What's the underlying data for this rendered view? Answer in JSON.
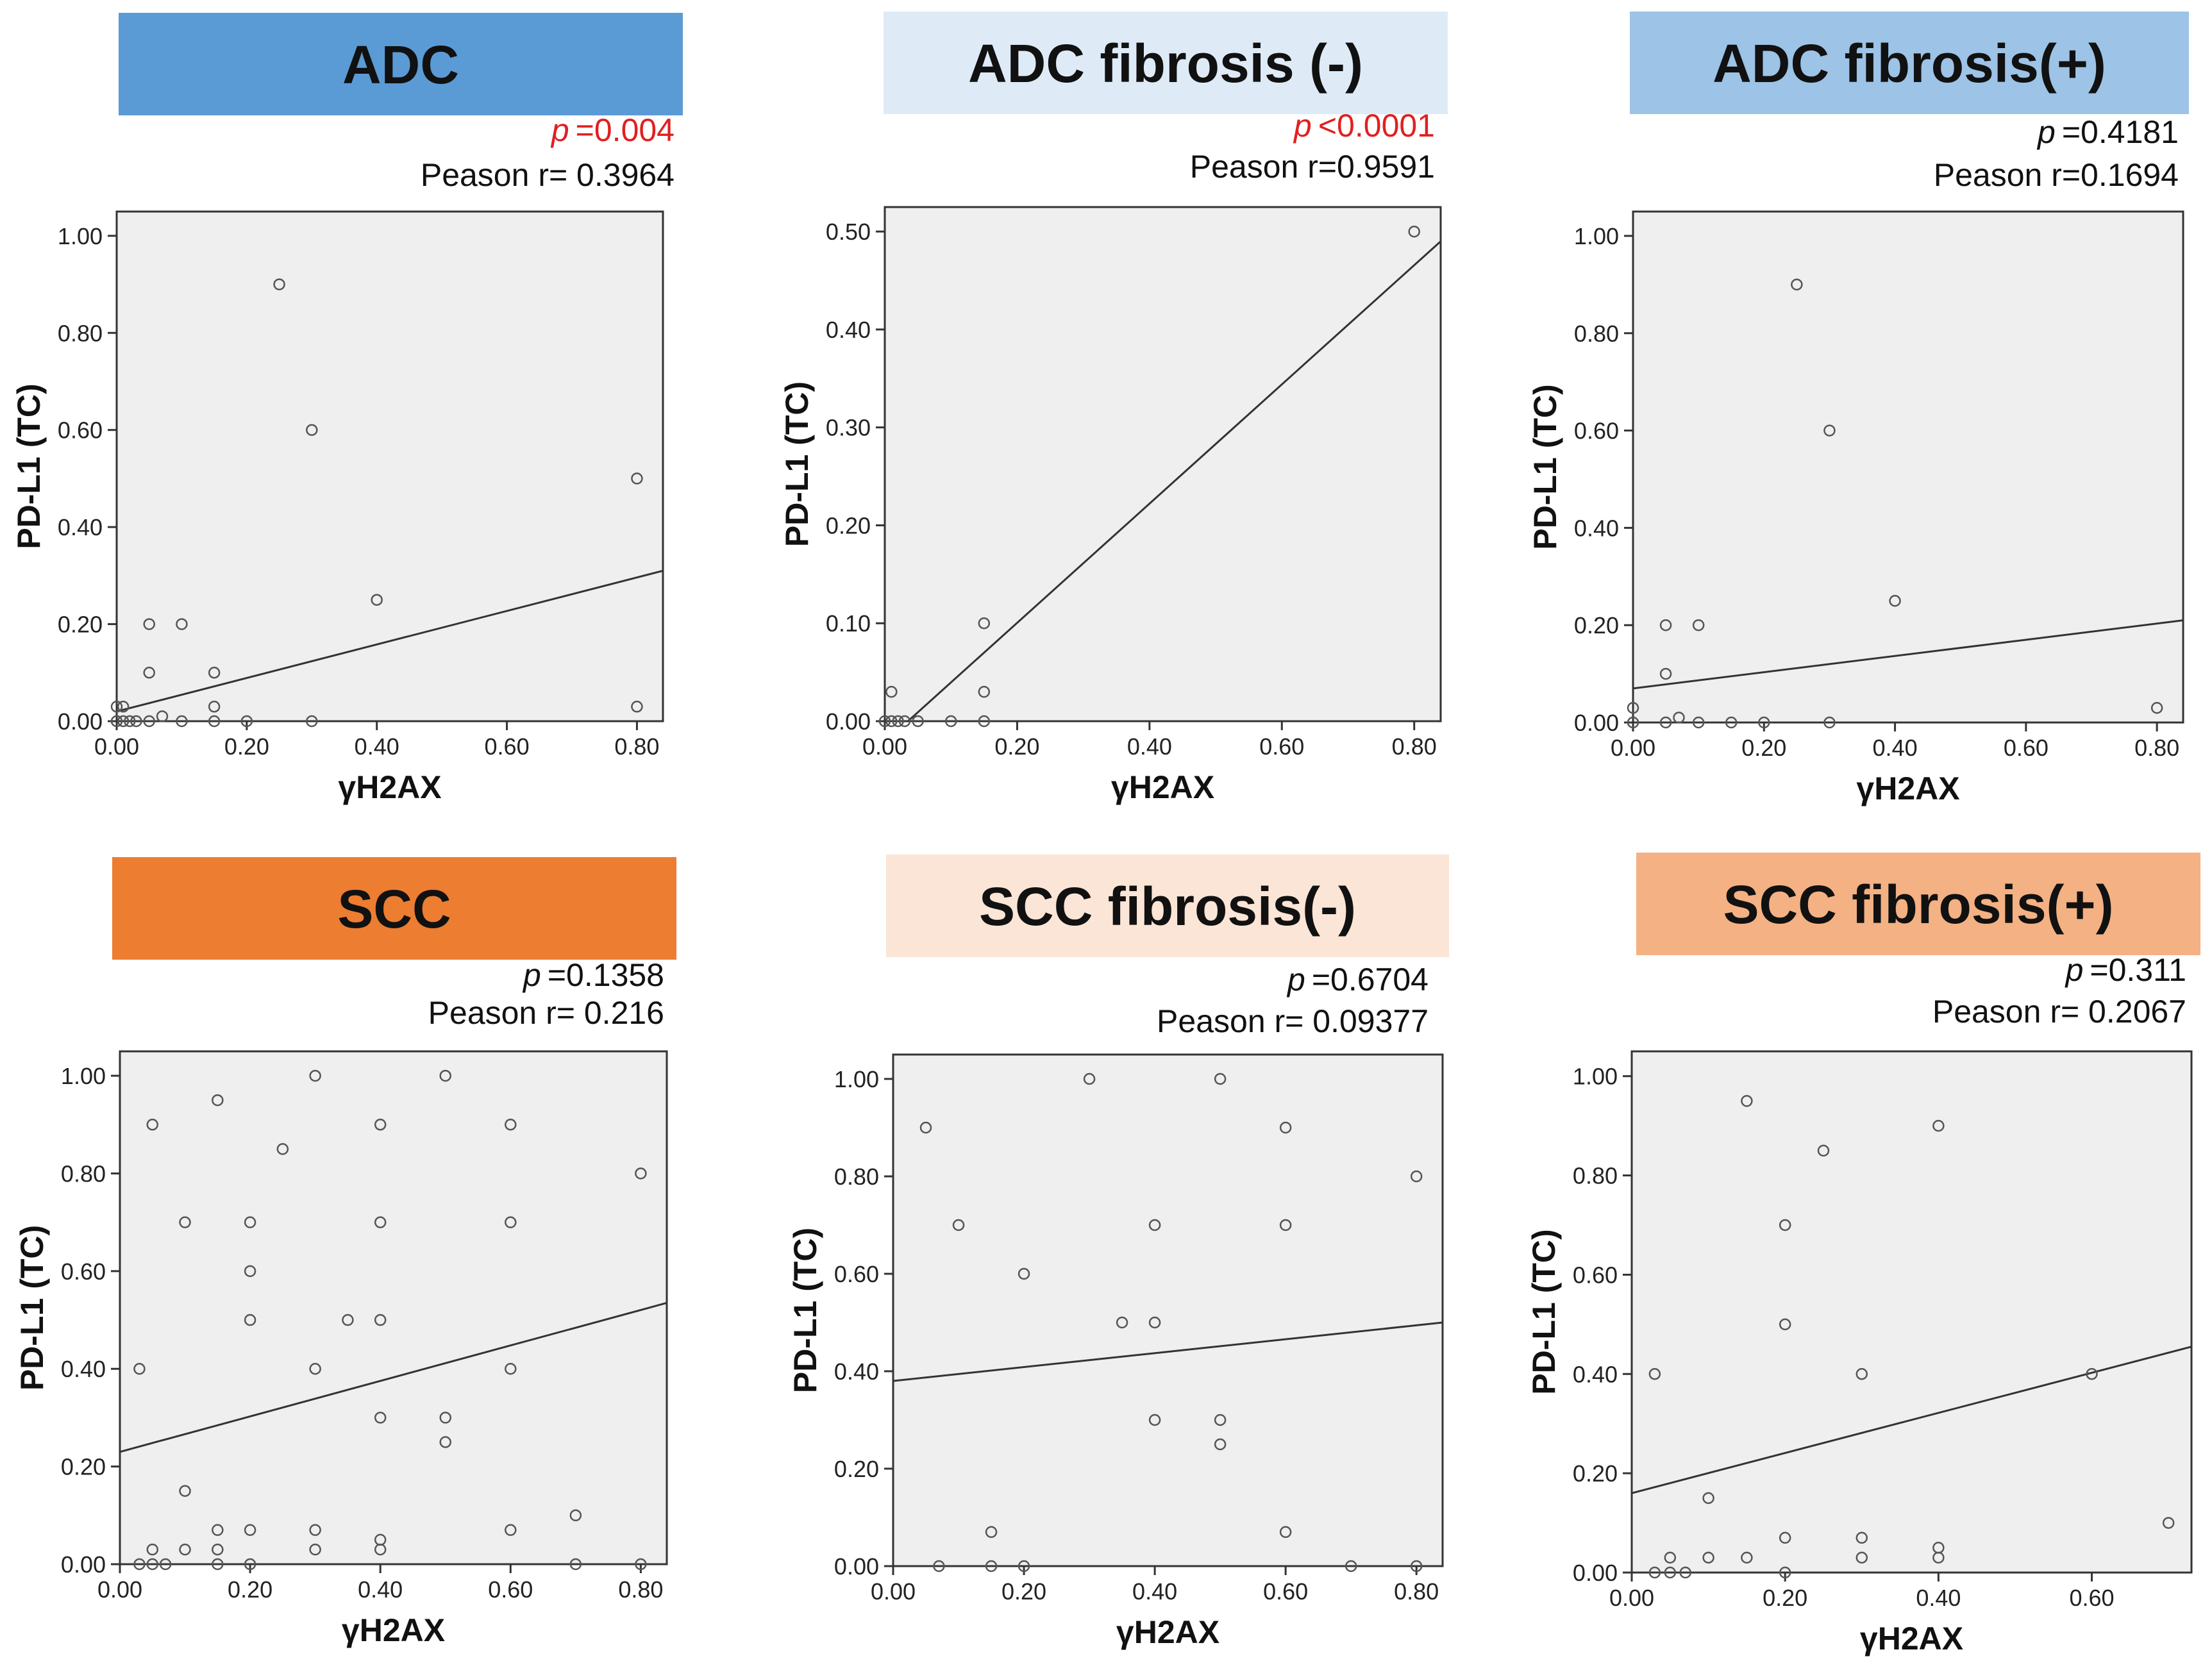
{
  "figure": {
    "x_axis_label": "γH2AX",
    "y_axis_label": "PD-L1 (TC)",
    "significant_color": "#e02020",
    "text_color": "#111111",
    "plot_bg": "#efefef"
  },
  "chart_data": [
    {
      "type": "scatter",
      "title": "ADC",
      "header_color": "#5b9bd5",
      "p_prefix": "p",
      "p_value": "=0.004",
      "p_significant": true,
      "r_text": "Peason r= 0.3964",
      "xlabel": "γH2AX",
      "ylabel": "PD-L1 (TC)",
      "xlim": [
        0,
        0.84
      ],
      "ylim": [
        0,
        1.05
      ],
      "xticks": [
        "0.00",
        "0.20",
        "0.40",
        "0.60",
        "0.80"
      ],
      "yticks": [
        "0.00",
        "0.20",
        "0.40",
        "0.60",
        "0.80",
        "1.00"
      ],
      "x": [
        0.25,
        0.3,
        0.8,
        0.4,
        0.05,
        0.1,
        0.05,
        0.15,
        0.0,
        0.01,
        0.15,
        0.8,
        0.0,
        0.01,
        0.02,
        0.03,
        0.05,
        0.07,
        0.1,
        0.15,
        0.2,
        0.3
      ],
      "y": [
        0.9,
        0.6,
        0.5,
        0.25,
        0.2,
        0.2,
        0.1,
        0.1,
        0.03,
        0.03,
        0.03,
        0.03,
        0.0,
        0.0,
        0.0,
        0.0,
        0.0,
        0.01,
        0.0,
        0.0,
        0.0,
        0.0
      ],
      "fit_line": [
        [
          0.0,
          0.02
        ],
        [
          0.84,
          0.31
        ]
      ]
    },
    {
      "type": "scatter",
      "title": "ADC fibrosis (-)",
      "header_color": "#deebf7",
      "p_prefix": "p",
      "p_value": "<0.0001",
      "p_significant": true,
      "r_text": "Peason r=0.9591",
      "xlabel": "γH2AX",
      "ylabel": "PD-L1 (TC)",
      "xlim": [
        0,
        0.84
      ],
      "ylim": [
        0,
        0.525
      ],
      "xticks": [
        "0.00",
        "0.20",
        "0.40",
        "0.60",
        "0.80"
      ],
      "yticks": [
        "0.00",
        "0.10",
        "0.20",
        "0.30",
        "0.40",
        "0.50"
      ],
      "x": [
        0.8,
        0.15,
        0.01,
        0.15,
        0.0,
        0.01,
        0.02,
        0.03,
        0.05,
        0.1,
        0.15
      ],
      "y": [
        0.5,
        0.1,
        0.03,
        0.03,
        0.0,
        0.0,
        0.0,
        0.0,
        0.0,
        0.0,
        0.0
      ],
      "fit_line": [
        [
          0.035,
          0.0
        ],
        [
          0.84,
          0.49
        ]
      ]
    },
    {
      "type": "scatter",
      "title": "ADC fibrosis(+)",
      "header_color": "#9dc3e6",
      "p_prefix": "p",
      "p_value": "=0.4181",
      "p_significant": false,
      "r_text": "Peason r=0.1694",
      "xlabel": "γH2AX",
      "ylabel": "PD-L1 (TC)",
      "xlim": [
        0,
        0.84
      ],
      "ylim": [
        0,
        1.05
      ],
      "xticks": [
        "0.00",
        "0.20",
        "0.40",
        "0.60",
        "0.80"
      ],
      "yticks": [
        "0.00",
        "0.20",
        "0.40",
        "0.60",
        "0.80",
        "1.00"
      ],
      "x": [
        0.25,
        0.3,
        0.4,
        0.05,
        0.1,
        0.05,
        0.0,
        0.8,
        0.07,
        0.0,
        0.05,
        0.1,
        0.15,
        0.2,
        0.3
      ],
      "y": [
        0.9,
        0.6,
        0.25,
        0.2,
        0.2,
        0.1,
        0.03,
        0.03,
        0.01,
        0.0,
        0.0,
        0.0,
        0.0,
        0.0,
        0.0
      ],
      "fit_line": [
        [
          0.0,
          0.07
        ],
        [
          0.84,
          0.21
        ]
      ]
    },
    {
      "type": "scatter",
      "title": "SCC",
      "header_color": "#ed7d31",
      "p_prefix": "p",
      "p_value": "=0.1358",
      "p_significant": false,
      "r_text": "Peason r= 0.216",
      "xlabel": "γH2AX",
      "ylabel": "PD-L1 (TC)",
      "xlim": [
        0,
        0.84
      ],
      "ylim": [
        0,
        1.05
      ],
      "xticks": [
        "0.00",
        "0.20",
        "0.40",
        "0.60",
        "0.80"
      ],
      "yticks": [
        "0.00",
        "0.20",
        "0.40",
        "0.60",
        "0.80",
        "1.00"
      ],
      "x": [
        0.3,
        0.5,
        0.15,
        0.05,
        0.4,
        0.6,
        0.25,
        0.8,
        0.1,
        0.2,
        0.4,
        0.6,
        0.2,
        0.2,
        0.35,
        0.4,
        0.03,
        0.3,
        0.6,
        0.4,
        0.5,
        0.5,
        0.1,
        0.7,
        0.15,
        0.2,
        0.3,
        0.4,
        0.6,
        0.05,
        0.1,
        0.15,
        0.3,
        0.4,
        0.03,
        0.05,
        0.07,
        0.15,
        0.2,
        0.7,
        0.8
      ],
      "y": [
        1.0,
        1.0,
        0.95,
        0.9,
        0.9,
        0.9,
        0.85,
        0.8,
        0.7,
        0.7,
        0.7,
        0.7,
        0.6,
        0.5,
        0.5,
        0.5,
        0.4,
        0.4,
        0.4,
        0.3,
        0.3,
        0.25,
        0.15,
        0.1,
        0.07,
        0.07,
        0.07,
        0.05,
        0.07,
        0.03,
        0.03,
        0.03,
        0.03,
        0.03,
        0.0,
        0.0,
        0.0,
        0.0,
        0.0,
        0.0,
        0.0
      ],
      "fit_line": [
        [
          0.0,
          0.23
        ],
        [
          0.84,
          0.535
        ]
      ]
    },
    {
      "type": "scatter",
      "title": "SCC fibrosis(-)",
      "header_color": "#fbe5d6",
      "p_prefix": "p",
      "p_value": "=0.6704",
      "p_significant": false,
      "r_text": "Peason r= 0.09377",
      "xlabel": "γH2AX",
      "ylabel": "PD-L1 (TC)",
      "xlim": [
        0,
        0.84
      ],
      "ylim": [
        0,
        1.05
      ],
      "xticks": [
        "0.00",
        "0.20",
        "0.40",
        "0.60",
        "0.80"
      ],
      "yticks": [
        "0.00",
        "0.20",
        "0.40",
        "0.60",
        "0.80",
        "1.00"
      ],
      "x": [
        0.3,
        0.5,
        0.05,
        0.6,
        0.8,
        0.1,
        0.4,
        0.6,
        0.2,
        0.35,
        0.4,
        0.4,
        0.5,
        0.5,
        0.15,
        0.6,
        0.07,
        0.15,
        0.2,
        0.7,
        0.8
      ],
      "y": [
        1.0,
        1.0,
        0.9,
        0.9,
        0.8,
        0.7,
        0.7,
        0.7,
        0.6,
        0.5,
        0.5,
        0.3,
        0.3,
        0.25,
        0.07,
        0.07,
        0.0,
        0.0,
        0.0,
        0.0,
        0.0
      ],
      "fit_line": [
        [
          0.0,
          0.38
        ],
        [
          0.84,
          0.5
        ]
      ]
    },
    {
      "type": "scatter",
      "title": "SCC fibrosis(+)",
      "header_color": "#f4b183",
      "p_prefix": "p",
      "p_value": "=0.311",
      "p_significant": false,
      "r_text": "Peason r= 0.2067",
      "xlabel": "γH2AX",
      "ylabel": "PD-L1 (TC)",
      "xlim": [
        0,
        0.73
      ],
      "ylim": [
        0,
        1.05
      ],
      "xticks": [
        "0.00",
        "0.20",
        "0.40",
        "0.60"
      ],
      "yticks": [
        "0.00",
        "0.20",
        "0.40",
        "0.60",
        "0.80",
        "1.00"
      ],
      "x": [
        0.15,
        0.4,
        0.25,
        0.2,
        0.2,
        0.03,
        0.3,
        0.6,
        0.1,
        0.7,
        0.2,
        0.3,
        0.4,
        0.05,
        0.1,
        0.15,
        0.3,
        0.4,
        0.03,
        0.05,
        0.07,
        0.2
      ],
      "y": [
        0.95,
        0.9,
        0.85,
        0.7,
        0.5,
        0.4,
        0.4,
        0.4,
        0.15,
        0.1,
        0.07,
        0.07,
        0.05,
        0.03,
        0.03,
        0.03,
        0.03,
        0.03,
        0.0,
        0.0,
        0.0,
        0.0
      ],
      "fit_line": [
        [
          0.0,
          0.16
        ],
        [
          0.73,
          0.455
        ]
      ]
    }
  ]
}
